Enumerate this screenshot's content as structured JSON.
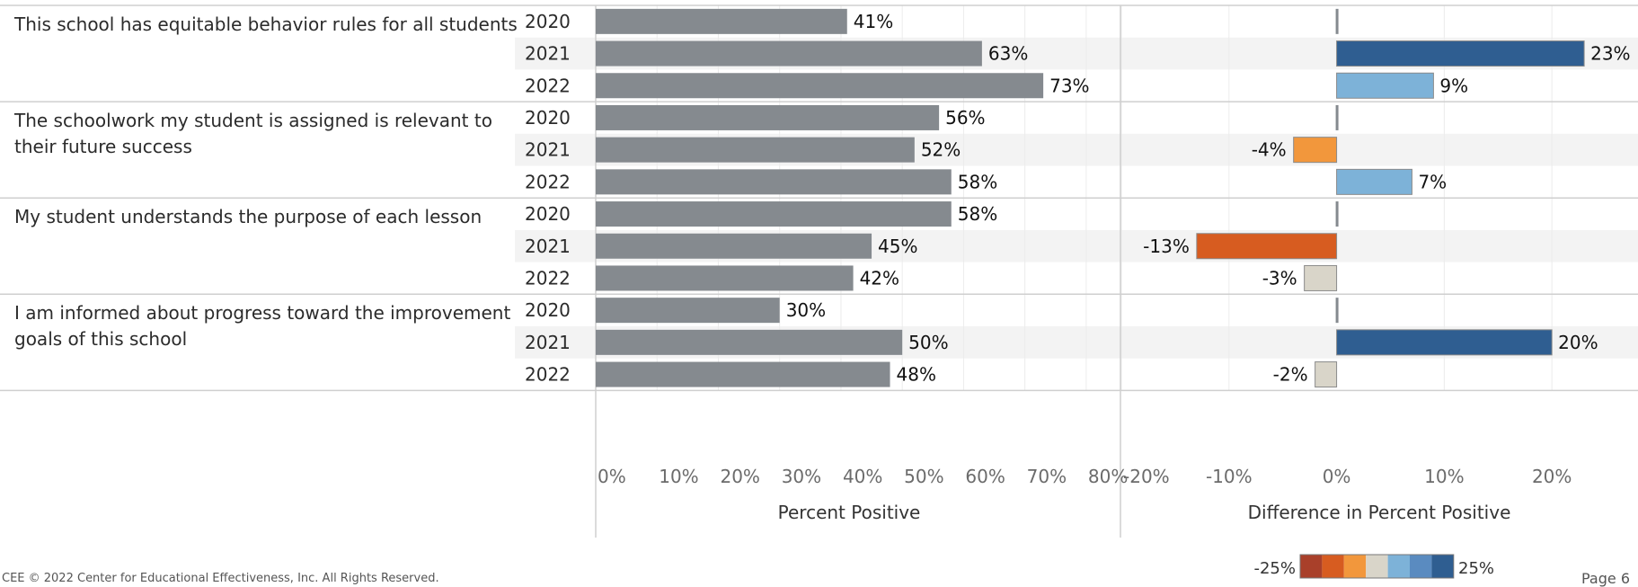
{
  "footer": {
    "left": "CEE © 2022 Center for Educational Effectiveness, Inc. All Rights Reserved.",
    "right": "Page 6"
  },
  "chart_data": [
    {
      "type": "bar",
      "orientation": "horizontal",
      "xlabel": "Percent Positive",
      "xlim": [
        0,
        85
      ],
      "xticks": [
        0,
        10,
        20,
        30,
        40,
        50,
        60,
        70,
        80
      ],
      "tick_labels": [
        "0%",
        "10%",
        "20%",
        "30%",
        "40%",
        "50%",
        "60%",
        "70%",
        "80%"
      ],
      "bar_color": "#858a8f",
      "groups": [
        {
          "question": "This school has equitable behavior rules for all students",
          "rows": [
            {
              "year": "2020",
              "value": 41,
              "label": "41%"
            },
            {
              "year": "2021",
              "value": 63,
              "label": "63%"
            },
            {
              "year": "2022",
              "value": 73,
              "label": "73%"
            }
          ]
        },
        {
          "question": "The schoolwork my student is assigned is relevant to their future success",
          "rows": [
            {
              "year": "2020",
              "value": 56,
              "label": "56%"
            },
            {
              "year": "2021",
              "value": 52,
              "label": "52%"
            },
            {
              "year": "2022",
              "value": 58,
              "label": "58%"
            }
          ]
        },
        {
          "question": "My student understands the purpose of each lesson",
          "rows": [
            {
              "year": "2020",
              "value": 58,
              "label": "58%"
            },
            {
              "year": "2021",
              "value": 45,
              "label": "45%"
            },
            {
              "year": "2022",
              "value": 42,
              "label": "42%"
            }
          ]
        },
        {
          "question": "I am informed about progress toward the improvement goals of this school",
          "rows": [
            {
              "year": "2020",
              "value": 30,
              "label": "30%"
            },
            {
              "year": "2021",
              "value": 50,
              "label": "50%"
            },
            {
              "year": "2022",
              "value": 48,
              "label": "48%"
            }
          ]
        }
      ]
    },
    {
      "type": "bar",
      "orientation": "horizontal",
      "xlabel": "Difference in Percent Positive",
      "xlim": [
        -20,
        28
      ],
      "xticks": [
        -20,
        -10,
        0,
        10,
        20
      ],
      "tick_labels": [
        "-20%",
        "-10%",
        "0%",
        "10%",
        "20%"
      ],
      "values": [
        {
          "question_index": 0,
          "year": "2020",
          "value": 0,
          "label": ""
        },
        {
          "question_index": 0,
          "year": "2021",
          "value": 23,
          "label": "23%"
        },
        {
          "question_index": 0,
          "year": "2022",
          "value": 9,
          "label": "9%"
        },
        {
          "question_index": 1,
          "year": "2020",
          "value": 0,
          "label": ""
        },
        {
          "question_index": 1,
          "year": "2021",
          "value": -4,
          "label": "-4%"
        },
        {
          "question_index": 1,
          "year": "2022",
          "value": 7,
          "label": "7%"
        },
        {
          "question_index": 2,
          "year": "2020",
          "value": 0,
          "label": ""
        },
        {
          "question_index": 2,
          "year": "2021",
          "value": -13,
          "label": "-13%"
        },
        {
          "question_index": 2,
          "year": "2022",
          "value": -3,
          "label": "-3%"
        },
        {
          "question_index": 3,
          "year": "2020",
          "value": 0,
          "label": ""
        },
        {
          "question_index": 3,
          "year": "2021",
          "value": 20,
          "label": "20%"
        },
        {
          "question_index": 3,
          "year": "2022",
          "value": -2,
          "label": "-2%"
        }
      ],
      "color_legend": {
        "min_label": "-25%",
        "max_label": "25%",
        "range": [
          -25,
          25
        ],
        "colors": [
          "#a9402a",
          "#d75c20",
          "#f2973c",
          "#d9d5c9",
          "#7db2d8",
          "#5a8bc0",
          "#2f5e91"
        ]
      }
    }
  ]
}
